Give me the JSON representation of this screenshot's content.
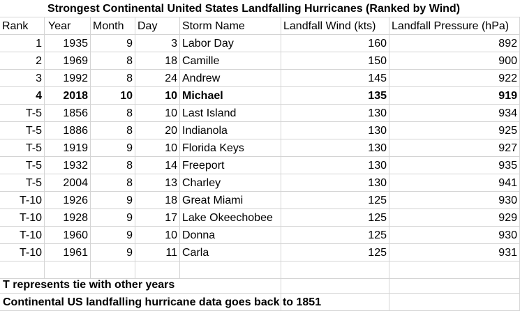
{
  "title": "Strongest Continental United States Landfalling Hurricanes (Ranked by Wind)",
  "headers": [
    "Rank",
    "Year",
    "Month",
    "Day",
    "Storm Name",
    "Landfall Wind (kts)",
    "Landfall Pressure (hPa)"
  ],
  "rows": [
    {
      "rank": "1",
      "year": "1935",
      "month": "9",
      "day": "3",
      "name": "Labor Day",
      "wind": "160",
      "pressure": "892",
      "bold": false
    },
    {
      "rank": "2",
      "year": "1969",
      "month": "8",
      "day": "18",
      "name": "Camille",
      "wind": "150",
      "pressure": "900",
      "bold": false
    },
    {
      "rank": "3",
      "year": "1992",
      "month": "8",
      "day": "24",
      "name": "Andrew",
      "wind": "145",
      "pressure": "922",
      "bold": false
    },
    {
      "rank": "4",
      "year": "2018",
      "month": "10",
      "day": "10",
      "name": "Michael",
      "wind": "135",
      "pressure": "919",
      "bold": true
    },
    {
      "rank": "T-5",
      "year": "1856",
      "month": "8",
      "day": "10",
      "name": "Last Island",
      "wind": "130",
      "pressure": "934",
      "bold": false
    },
    {
      "rank": "T-5",
      "year": "1886",
      "month": "8",
      "day": "20",
      "name": "Indianola",
      "wind": "130",
      "pressure": "925",
      "bold": false
    },
    {
      "rank": "T-5",
      "year": "1919",
      "month": "9",
      "day": "10",
      "name": "Florida Keys",
      "wind": "130",
      "pressure": "927",
      "bold": false
    },
    {
      "rank": "T-5",
      "year": "1932",
      "month": "8",
      "day": "14",
      "name": "Freeport",
      "wind": "130",
      "pressure": "935",
      "bold": false
    },
    {
      "rank": "T-5",
      "year": "2004",
      "month": "8",
      "day": "13",
      "name": "Charley",
      "wind": "130",
      "pressure": "941",
      "bold": false
    },
    {
      "rank": "T-10",
      "year": "1926",
      "month": "9",
      "day": "18",
      "name": "Great Miami",
      "wind": "125",
      "pressure": "930",
      "bold": false
    },
    {
      "rank": "T-10",
      "year": "1928",
      "month": "9",
      "day": "17",
      "name": "Lake Okeechobee",
      "wind": "125",
      "pressure": "929",
      "bold": false
    },
    {
      "rank": "T-10",
      "year": "1960",
      "month": "9",
      "day": "10",
      "name": "Donna",
      "wind": "125",
      "pressure": "930",
      "bold": false
    },
    {
      "rank": "T-10",
      "year": "1961",
      "month": "9",
      "day": "11",
      "name": "Carla",
      "wind": "125",
      "pressure": "931",
      "bold": false
    }
  ],
  "notes": [
    "T represents tie with other years",
    "Continental US landfalling hurricane data goes back to 1851"
  ]
}
